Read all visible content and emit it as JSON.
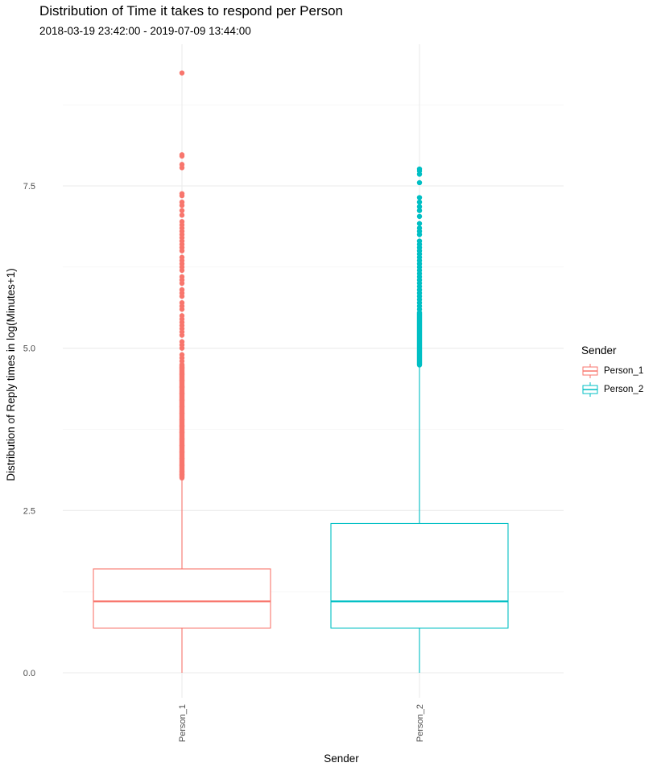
{
  "chart_data": {
    "type": "boxplot",
    "title": "Distribution of Time it takes to respond per Person",
    "subtitle": "2018-03-19 23:42:00  -  2019-07-09 13:44:00",
    "xlabel": "Sender",
    "ylabel": "Distribution of Reply times in log(Minutes+1)",
    "ylim": [
      -0.3,
      9.6
    ],
    "yticks": [
      0.0,
      2.5,
      5.0,
      7.5
    ],
    "ytick_labels": [
      "0.0",
      "2.5",
      "5.0",
      "7.5"
    ],
    "categories": [
      "Person_1",
      "Person_2"
    ],
    "legend_title": "Sender",
    "legend_position": "right",
    "grid": true,
    "series": [
      {
        "name": "Person_1",
        "color": "#F8766D",
        "whisker_low": 0.0,
        "q1": 0.69,
        "median": 1.1,
        "q3": 1.6,
        "whisker_high": 2.99,
        "outlier_band": [
          3.0,
          4.75
        ],
        "outliers": [
          3.05,
          3.1,
          3.2,
          3.3,
          3.4,
          3.5,
          3.6,
          3.7,
          3.8,
          3.9,
          4.0,
          4.1,
          4.2,
          4.3,
          4.4,
          4.5,
          4.6,
          4.7,
          4.8,
          4.85,
          4.9,
          5.0,
          5.05,
          5.1,
          5.2,
          5.25,
          5.3,
          5.35,
          5.4,
          5.45,
          5.5,
          5.6,
          5.65,
          5.7,
          5.8,
          5.85,
          5.9,
          6.0,
          6.05,
          6.1,
          6.2,
          6.25,
          6.3,
          6.35,
          6.4,
          6.5,
          6.55,
          6.6,
          6.65,
          6.7,
          6.75,
          6.8,
          6.85,
          6.9,
          6.95,
          7.05,
          7.12,
          7.2,
          7.25,
          7.35,
          7.38,
          7.78,
          7.83,
          7.96,
          7.98,
          9.24
        ]
      },
      {
        "name": "Person_2",
        "color": "#00BFC4",
        "whisker_low": 0.0,
        "q1": 0.69,
        "median": 1.1,
        "q3": 2.3,
        "whisker_high": 4.73,
        "outlier_band": [
          4.74,
          5.55
        ],
        "outliers": [
          5.6,
          5.65,
          5.7,
          5.75,
          5.8,
          5.85,
          5.9,
          5.95,
          6.0,
          6.05,
          6.1,
          6.15,
          6.2,
          6.25,
          6.3,
          6.35,
          6.4,
          6.45,
          6.5,
          6.55,
          6.6,
          6.65,
          6.75,
          6.8,
          6.85,
          6.92,
          7.03,
          7.12,
          7.18,
          7.25,
          7.32,
          7.55,
          7.68,
          7.73,
          7.76
        ]
      }
    ]
  }
}
